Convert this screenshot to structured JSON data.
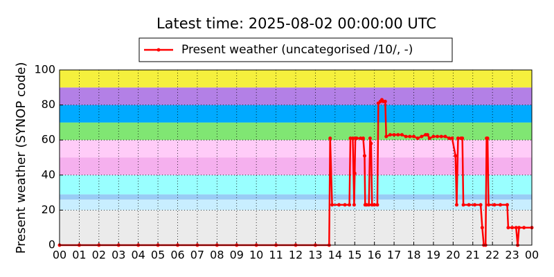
{
  "chart_data": {
    "type": "line",
    "title": "Latest time: 2025-08-02 00:00:00 UTC",
    "y_label": "Present weather (SYNOP code)",
    "legend": "top",
    "grid": true,
    "bands": [
      {
        "from": 0,
        "to": 20,
        "color": "#ebebeb"
      },
      {
        "from": 20,
        "to": 26,
        "color": "#c8eeff"
      },
      {
        "from": 26,
        "to": 29,
        "color": "#99ccf5"
      },
      {
        "from": 29,
        "to": 40,
        "color": "#99ffff"
      },
      {
        "from": 40,
        "to": 50,
        "color": "#f5b0ee"
      },
      {
        "from": 50,
        "to": 60,
        "color": "#ffccf8"
      },
      {
        "from": 60,
        "to": 70,
        "color": "#80e673"
      },
      {
        "from": 70,
        "to": 80,
        "color": "#00aaff"
      },
      {
        "from": 80,
        "to": 90,
        "color": "#b380e6"
      },
      {
        "from": 90,
        "to": 100,
        "color": "#f5f03d"
      }
    ],
    "xlim": [
      0,
      24
    ],
    "ylim": [
      0,
      100
    ],
    "yticks": [
      0,
      20,
      40,
      60,
      80,
      100
    ],
    "xticks": [
      {
        "value": 0,
        "label": "00"
      },
      {
        "value": 1,
        "label": "01"
      },
      {
        "value": 2,
        "label": "02"
      },
      {
        "value": 3,
        "label": "03"
      },
      {
        "value": 4,
        "label": "04"
      },
      {
        "value": 5,
        "label": "05"
      },
      {
        "value": 6,
        "label": "06"
      },
      {
        "value": 7,
        "label": "07"
      },
      {
        "value": 8,
        "label": "08"
      },
      {
        "value": 9,
        "label": "09"
      },
      {
        "value": 10,
        "label": "10"
      },
      {
        "value": 11,
        "label": "11"
      },
      {
        "value": 12,
        "label": "12"
      },
      {
        "value": 13,
        "label": "13"
      },
      {
        "value": 14,
        "label": "14"
      },
      {
        "value": 15,
        "label": "15"
      },
      {
        "value": 16,
        "label": "16"
      },
      {
        "value": 17,
        "label": "17"
      },
      {
        "value": 18,
        "label": "18"
      },
      {
        "value": 19,
        "label": "19"
      },
      {
        "value": 20,
        "label": "20"
      },
      {
        "value": 21,
        "label": "21"
      },
      {
        "value": 22,
        "label": "22"
      },
      {
        "value": 23,
        "label": "23"
      },
      {
        "value": 24,
        "label": "00"
      }
    ],
    "x": [
      0,
      1,
      2,
      3,
      4,
      5,
      6,
      7,
      8,
      9,
      10,
      11,
      12,
      13,
      13.7,
      13.75,
      13.85,
      14.2,
      14.5,
      14.73,
      14.78,
      14.9,
      14.97,
      15.0,
      15.03,
      15.1,
      15.3,
      15.43,
      15.5,
      15.53,
      15.6,
      15.72,
      15.78,
      15.83,
      15.88,
      16.0,
      16.15,
      16.2,
      16.3,
      16.38,
      16.45,
      16.55,
      16.6,
      16.8,
      17.0,
      17.2,
      17.4,
      17.6,
      17.8,
      18.0,
      18.2,
      18.4,
      18.6,
      18.7,
      18.8,
      19.0,
      19.2,
      19.4,
      19.6,
      19.8,
      19.95,
      20.12,
      20.18,
      20.25,
      20.4,
      20.47,
      20.52,
      20.8,
      21.1,
      21.4,
      21.48,
      21.56,
      21.65,
      21.7,
      21.75,
      21.8,
      22.1,
      22.4,
      22.75,
      22.8,
      23.0,
      23.2,
      23.28,
      23.35,
      23.6,
      24
    ],
    "series": [
      {
        "name": "Present weather (uncategorised /10/, -)",
        "color": "#ff0000",
        "values": [
          0,
          0,
          0,
          0,
          0,
          0,
          0,
          0,
          0,
          0,
          0,
          0,
          0,
          0,
          0,
          61,
          23,
          23,
          23,
          23,
          61,
          61,
          23,
          41,
          61,
          61,
          61,
          61,
          51,
          23,
          23,
          23,
          61,
          58,
          23,
          23,
          23,
          81,
          82,
          83,
          82,
          82,
          62,
          63,
          63,
          63,
          63,
          62,
          62,
          62,
          61,
          62,
          63,
          63,
          61,
          62,
          62,
          62,
          62,
          61,
          61,
          51,
          23,
          61,
          61,
          61,
          23,
          23,
          23,
          23,
          10,
          0,
          0,
          61,
          61,
          23,
          23,
          23,
          23,
          10,
          10,
          10,
          0,
          10,
          10,
          10
        ]
      }
    ]
  }
}
